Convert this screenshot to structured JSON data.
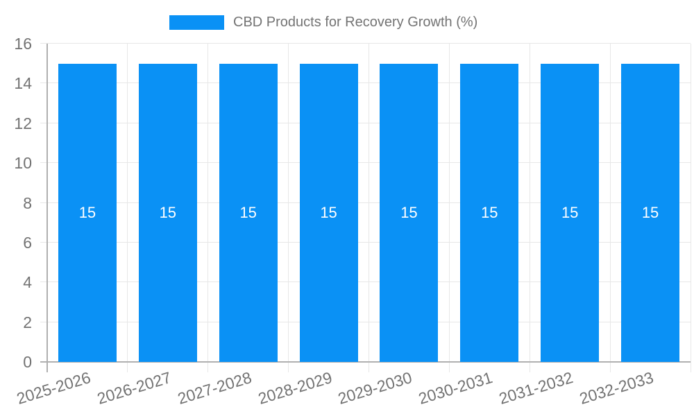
{
  "chart_data": {
    "type": "bar",
    "title": "CBD Products for Recovery Growth (%)",
    "categories": [
      "2025-2026",
      "2026-2027",
      "2027-2028",
      "2028-2029",
      "2029-2030",
      "2030-2031",
      "2031-2032",
      "2032-2033"
    ],
    "values": [
      15,
      15,
      15,
      15,
      15,
      15,
      15,
      15
    ],
    "bar_labels": [
      "15",
      "15",
      "15",
      "15",
      "15",
      "15",
      "15",
      "15"
    ],
    "xlabel": "",
    "ylabel": "",
    "ylim": [
      0,
      16
    ],
    "yticks": [
      0,
      2,
      4,
      6,
      8,
      10,
      12,
      14,
      16
    ],
    "grid": true,
    "legend_position": "top-center",
    "colors": {
      "bar": "#0a91f5",
      "grid": "#e7e7e7",
      "axis": "#b0b0b0",
      "text": "#737373",
      "bar_label_text": "#ffffff",
      "background": "#ffffff"
    }
  }
}
